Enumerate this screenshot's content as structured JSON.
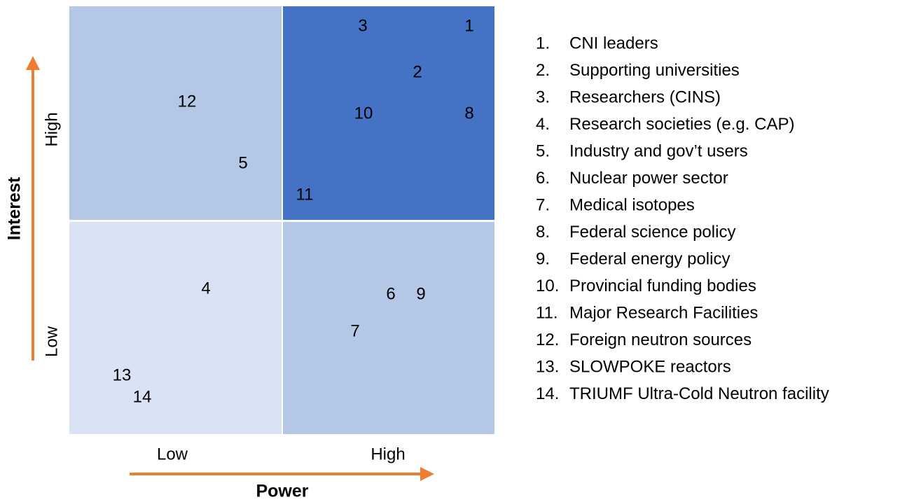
{
  "diagram": {
    "y_axis": {
      "title": "Interest",
      "high": "High",
      "low": "Low"
    },
    "x_axis": {
      "title": "Power",
      "low": "Low",
      "high": "High"
    },
    "points": [
      "1",
      "2",
      "3",
      "4",
      "5",
      "6",
      "7",
      "8",
      "9",
      "10",
      "11",
      "12",
      "13",
      "14"
    ],
    "legend": [
      {
        "marker": "1.",
        "text": "CNI leaders"
      },
      {
        "marker": "2.",
        "text": "Supporting universities"
      },
      {
        "marker": "3.",
        "text": "Researchers (CINS)"
      },
      {
        "marker": "4.",
        "text": "Research societies (e.g. CAP)"
      },
      {
        "marker": "5.",
        "text": "Industry and gov’t users"
      },
      {
        "marker": "6.",
        "text": "Nuclear power sector"
      },
      {
        "marker": "7.",
        "text": "Medical isotopes"
      },
      {
        "marker": "8.",
        "text": "Federal science policy"
      },
      {
        "marker": "9.",
        "text": "Federal energy policy"
      },
      {
        "marker": "10.",
        "text": "Provincial funding bodies"
      },
      {
        "marker": "11.",
        "text": "Major Research Facilities"
      },
      {
        "marker": "12.",
        "text": "Foreign neutron sources"
      },
      {
        "marker": "13.",
        "text": "SLOWPOKE reactors"
      },
      {
        "marker": "14.",
        "text": "TRIUMF Ultra-Cold Neutron facility"
      }
    ]
  }
}
